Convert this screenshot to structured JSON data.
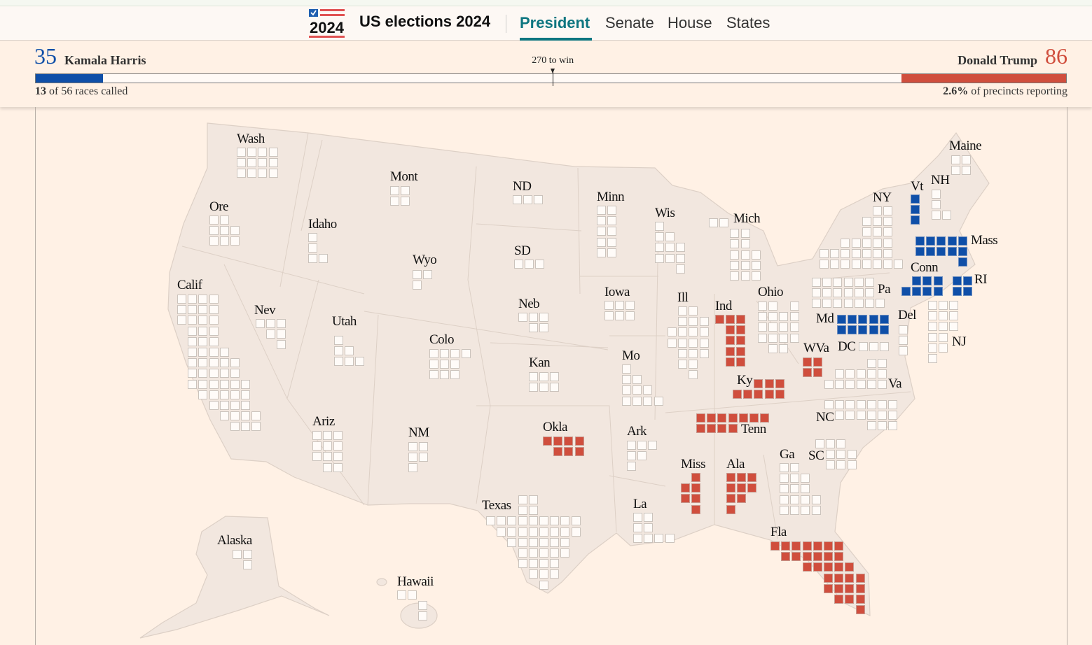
{
  "header": {
    "logo_text": "2024",
    "title": "US elections 2024",
    "tabs": [
      {
        "label": "President",
        "active": true
      },
      {
        "label": "Senate"
      },
      {
        "label": "House"
      },
      {
        "label": "States"
      }
    ]
  },
  "scoreboard": {
    "dem": {
      "name": "Kamala Harris",
      "votes": "35",
      "color": "#0f4fa8"
    },
    "rep": {
      "name": "Donald Trump",
      "votes": "86",
      "color": "#d04e3d"
    },
    "total_ev": 538,
    "to_win_value": 270,
    "to_win_label": "270 to win",
    "races_called_count": "13",
    "races_called_rest": "of 56 races called",
    "precincts_pct": "2.6%",
    "precincts_rest": "of precincts reporting"
  },
  "states": [
    {
      "name": "Wash",
      "ev": 12,
      "winner": ""
    },
    {
      "name": "Ore",
      "ev": 8,
      "winner": ""
    },
    {
      "name": "Idaho",
      "ev": 4,
      "winner": ""
    },
    {
      "name": "Calif",
      "ev": 54,
      "winner": ""
    },
    {
      "name": "Nev",
      "ev": 6,
      "winner": ""
    },
    {
      "name": "Utah",
      "ev": 6,
      "winner": ""
    },
    {
      "name": "Mont",
      "ev": 4,
      "winner": ""
    },
    {
      "name": "ND",
      "ev": 3,
      "winner": ""
    },
    {
      "name": "Minn",
      "ev": 10,
      "winner": ""
    },
    {
      "name": "Wyo",
      "ev": 3,
      "winner": ""
    },
    {
      "name": "SD",
      "ev": 3,
      "winner": ""
    },
    {
      "name": "Neb",
      "ev": 5,
      "winner": ""
    },
    {
      "name": "Iowa",
      "ev": 6,
      "winner": ""
    },
    {
      "name": "Colo",
      "ev": 10,
      "winner": ""
    },
    {
      "name": "Kan",
      "ev": 6,
      "winner": ""
    },
    {
      "name": "Mo",
      "ev": 10,
      "winner": ""
    },
    {
      "name": "Wis",
      "ev": 10,
      "winner": ""
    },
    {
      "name": "Mich",
      "ev": 15,
      "winner": ""
    },
    {
      "name": "Ill",
      "ev": 19,
      "winner": ""
    },
    {
      "name": "Ind",
      "ev": 11,
      "winner": "R"
    },
    {
      "name": "Ohio",
      "ev": 17,
      "winner": ""
    },
    {
      "name": "Ky",
      "ev": 8,
      "winner": "R"
    },
    {
      "name": "Tenn",
      "ev": 11,
      "winner": "R"
    },
    {
      "name": "WVa",
      "ev": 4,
      "winner": "R"
    },
    {
      "name": "Va",
      "ev": 13,
      "winner": ""
    },
    {
      "name": "NC",
      "ev": 16,
      "winner": ""
    },
    {
      "name": "DC",
      "ev": 3,
      "winner": ""
    },
    {
      "name": "Md",
      "ev": 10,
      "winner": "D"
    },
    {
      "name": "Del",
      "ev": 3,
      "winner": ""
    },
    {
      "name": "NJ",
      "ev": 14,
      "winner": ""
    },
    {
      "name": "Pa",
      "ev": 19,
      "winner": ""
    },
    {
      "name": "Conn",
      "ev": 7,
      "winner": "D"
    },
    {
      "name": "RI",
      "ev": 4,
      "winner": "D"
    },
    {
      "name": "Mass",
      "ev": 11,
      "winner": "D"
    },
    {
      "name": "NY",
      "ev": 28,
      "winner": ""
    },
    {
      "name": "Vt",
      "ev": 3,
      "winner": "D"
    },
    {
      "name": "NH",
      "ev": 4,
      "winner": ""
    },
    {
      "name": "Maine",
      "ev": 4,
      "winner": ""
    },
    {
      "name": "SC",
      "ev": 9,
      "winner": ""
    },
    {
      "name": "Ga",
      "ev": 16,
      "winner": ""
    },
    {
      "name": "Ala",
      "ev": 9,
      "winner": "R"
    },
    {
      "name": "Miss",
      "ev": 6,
      "winner": "R"
    },
    {
      "name": "Fla",
      "ev": 30,
      "winner": "R"
    },
    {
      "name": "La",
      "ev": 8,
      "winner": ""
    },
    {
      "name": "Ark",
      "ev": 6,
      "winner": ""
    },
    {
      "name": "Okla",
      "ev": 7,
      "winner": "R"
    },
    {
      "name": "Texas",
      "ev": 40,
      "winner": ""
    },
    {
      "name": "NM",
      "ev": 5,
      "winner": ""
    },
    {
      "name": "Ariz",
      "ev": 11,
      "winner": ""
    },
    {
      "name": "Alaska",
      "ev": 3,
      "winner": ""
    },
    {
      "name": "Hawaii",
      "ev": 4,
      "winner": ""
    }
  ]
}
